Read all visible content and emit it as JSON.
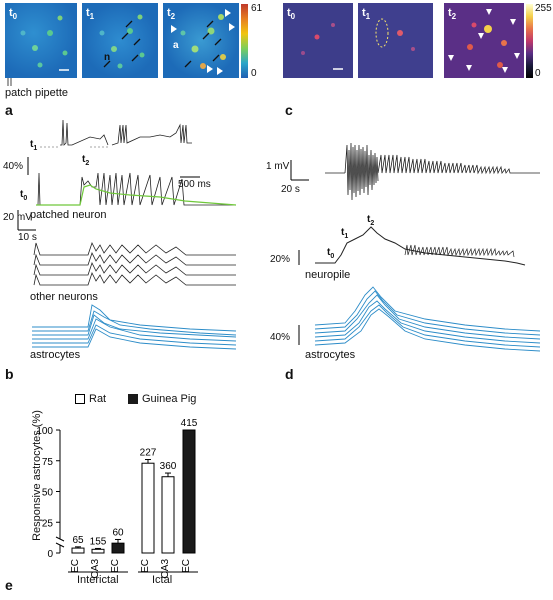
{
  "panel_a": {
    "letter": "a",
    "frames": [
      {
        "label": "t",
        "sub": "0"
      },
      {
        "label": "t",
        "sub": "1"
      },
      {
        "label": "t",
        "sub": "2"
      }
    ],
    "marker_n": "n",
    "marker_a": "a",
    "colorbar_max": "61",
    "colorbar_min": "0",
    "pipette_label": "patch pipette"
  },
  "panel_c": {
    "letter": "c",
    "frames": [
      {
        "label": "t",
        "sub": "0"
      },
      {
        "label": "t",
        "sub": "1"
      },
      {
        "label": "t",
        "sub": "2"
      }
    ],
    "colorbar_max": "255",
    "colorbar_min": "0"
  },
  "panel_b": {
    "letter": "b",
    "inset_t1": "t",
    "inset_t1_sub": "1",
    "inset_t2": "t",
    "inset_t2_sub": "2",
    "inset_t0": "t",
    "inset_t0_sub": "0",
    "scale_pct": "40%",
    "scale_ms": "500 ms",
    "scale_mv": "20 mV",
    "scale_s": "10 s",
    "patched_neuron": "patched neuron",
    "other_neurons": "other neurons",
    "astrocytes": "astrocytes"
  },
  "panel_d": {
    "letter": "d",
    "scale_mv": "1 mV",
    "scale_s": "20 s",
    "t0": "t",
    "t0_sub": "0",
    "t1": "t",
    "t1_sub": "1",
    "t2": "t",
    "t2_sub": "2",
    "scale_pct1": "20%",
    "neuropile": "neuropile",
    "scale_pct2": "40%",
    "astrocytes": "astrocytes"
  },
  "panel_e": {
    "letter": "e",
    "legend": [
      {
        "name": "Rat",
        "color": "#ffffff"
      },
      {
        "name": "Guinea Pig",
        "color": "#1a1a1a"
      }
    ],
    "ylabel": "Responsive astrocytes (%)",
    "groups": [
      "Interictal",
      "Ictal"
    ]
  },
  "chart_data": {
    "type": "bar",
    "ylabel": "Responsive astrocytes (%)",
    "ylim": [
      0,
      100
    ],
    "yticks": [
      0,
      25,
      50,
      75,
      100
    ],
    "categories": [
      "EC",
      "CA3",
      "EC",
      "EC",
      "CA3",
      "EC"
    ],
    "groups": [
      "Interictal",
      "Interictal",
      "Interictal",
      "Ictal",
      "Ictal",
      "Ictal"
    ],
    "species": [
      "Rat",
      "Rat",
      "Guinea Pig",
      "Rat",
      "Rat",
      "Guinea Pig"
    ],
    "values": [
      4,
      3,
      8,
      73,
      62,
      100
    ],
    "errors": [
      1,
      0.7,
      3,
      3,
      3,
      0
    ],
    "n_labels": [
      "65",
      "155",
      "60",
      "227",
      "360",
      "415"
    ]
  }
}
